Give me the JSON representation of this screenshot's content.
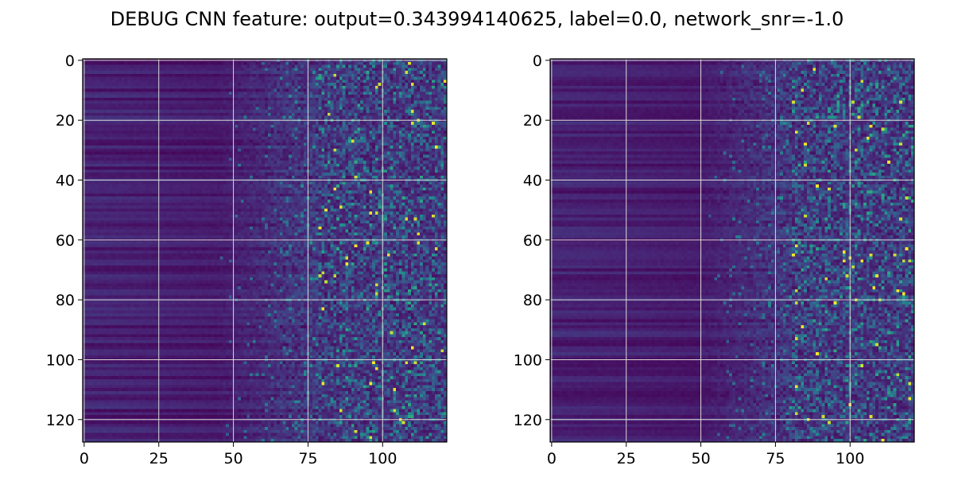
{
  "figure": {
    "title": "DEBUG CNN feature: output=0.343994140625, label=0.0, network_snr=-1.0"
  },
  "chart_data": [
    {
      "type": "heatmap",
      "title": "",
      "xlabel": "",
      "ylabel": "",
      "colormap": "viridis",
      "grid": true,
      "grid_color": "#d9d9d9",
      "x_range": [
        -0.5,
        121.5
      ],
      "y_range": [
        127.5,
        -0.5
      ],
      "columns": 122,
      "rows": 128,
      "x_ticks": [
        0,
        25,
        50,
        75,
        100
      ],
      "x_tick_labels": [
        "0",
        "25",
        "50",
        "75",
        "100"
      ],
      "y_ticks": [
        0,
        20,
        40,
        60,
        80,
        100,
        120
      ],
      "y_tick_labels": [
        "0",
        "20",
        "40",
        "60",
        "80",
        "100",
        "120"
      ],
      "pattern": {
        "left_region_cols": [
          0,
          45
        ],
        "left_region_description": "dark purple horizontal bands varying by row",
        "transition_cols": [
          45,
          78
        ],
        "right_region_cols": [
          78,
          121
        ],
        "right_region_description": "noisy speckle with teal/green values and sparse bright yellow pixels",
        "value_range": [
          0.0,
          1.0
        ]
      }
    },
    {
      "type": "heatmap",
      "title": "",
      "xlabel": "",
      "ylabel": "",
      "colormap": "viridis",
      "grid": true,
      "grid_color": "#d9d9d9",
      "x_range": [
        -0.5,
        121.5
      ],
      "y_range": [
        127.5,
        -0.5
      ],
      "columns": 122,
      "rows": 128,
      "x_ticks": [
        0,
        25,
        50,
        75,
        100
      ],
      "x_tick_labels": [
        "0",
        "25",
        "50",
        "75",
        "100"
      ],
      "y_ticks": [
        0,
        20,
        40,
        60,
        80,
        100,
        120
      ],
      "y_tick_labels": [
        "0",
        "20",
        "40",
        "60",
        "80",
        "100",
        "120"
      ],
      "pattern": {
        "left_region_cols": [
          0,
          50
        ],
        "left_region_description": "dark purple horizontal bands varying by row",
        "transition_cols": [
          50,
          80
        ],
        "right_region_cols": [
          80,
          121
        ],
        "right_region_description": "noisy speckle, slightly sparser, with sparse bright yellow pixels",
        "value_range": [
          0.0,
          1.0
        ]
      }
    }
  ]
}
